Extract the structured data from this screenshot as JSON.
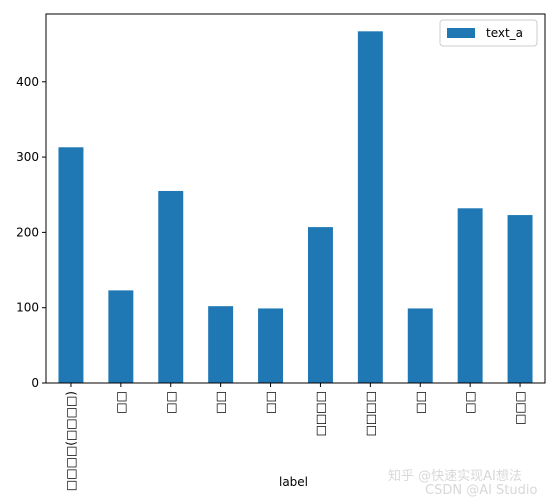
{
  "chart_data": {
    "type": "bar",
    "xlabel": "label",
    "ylabel": "",
    "ylim": [
      0,
      490
    ],
    "yticks": [
      0,
      100,
      200,
      300,
      400
    ],
    "categories": [
      "□□□□(□□□□)",
      "□□",
      "□□",
      "□□",
      "□□",
      "□□□□",
      "□□□□",
      "□□",
      "□□",
      "□□□"
    ],
    "series": [
      {
        "name": "text_a",
        "values": [
          313,
          123,
          255,
          102,
          99,
          207,
          467,
          99,
          232,
          223
        ]
      }
    ],
    "colors": {
      "bar": "#1f77b4",
      "axis": "#000000"
    },
    "legend": {
      "position": "top-right"
    },
    "grid": false
  },
  "watermark": {
    "line1": "知乎 @快速实现AI想法",
    "line2": "CSDN @AI Studio"
  }
}
